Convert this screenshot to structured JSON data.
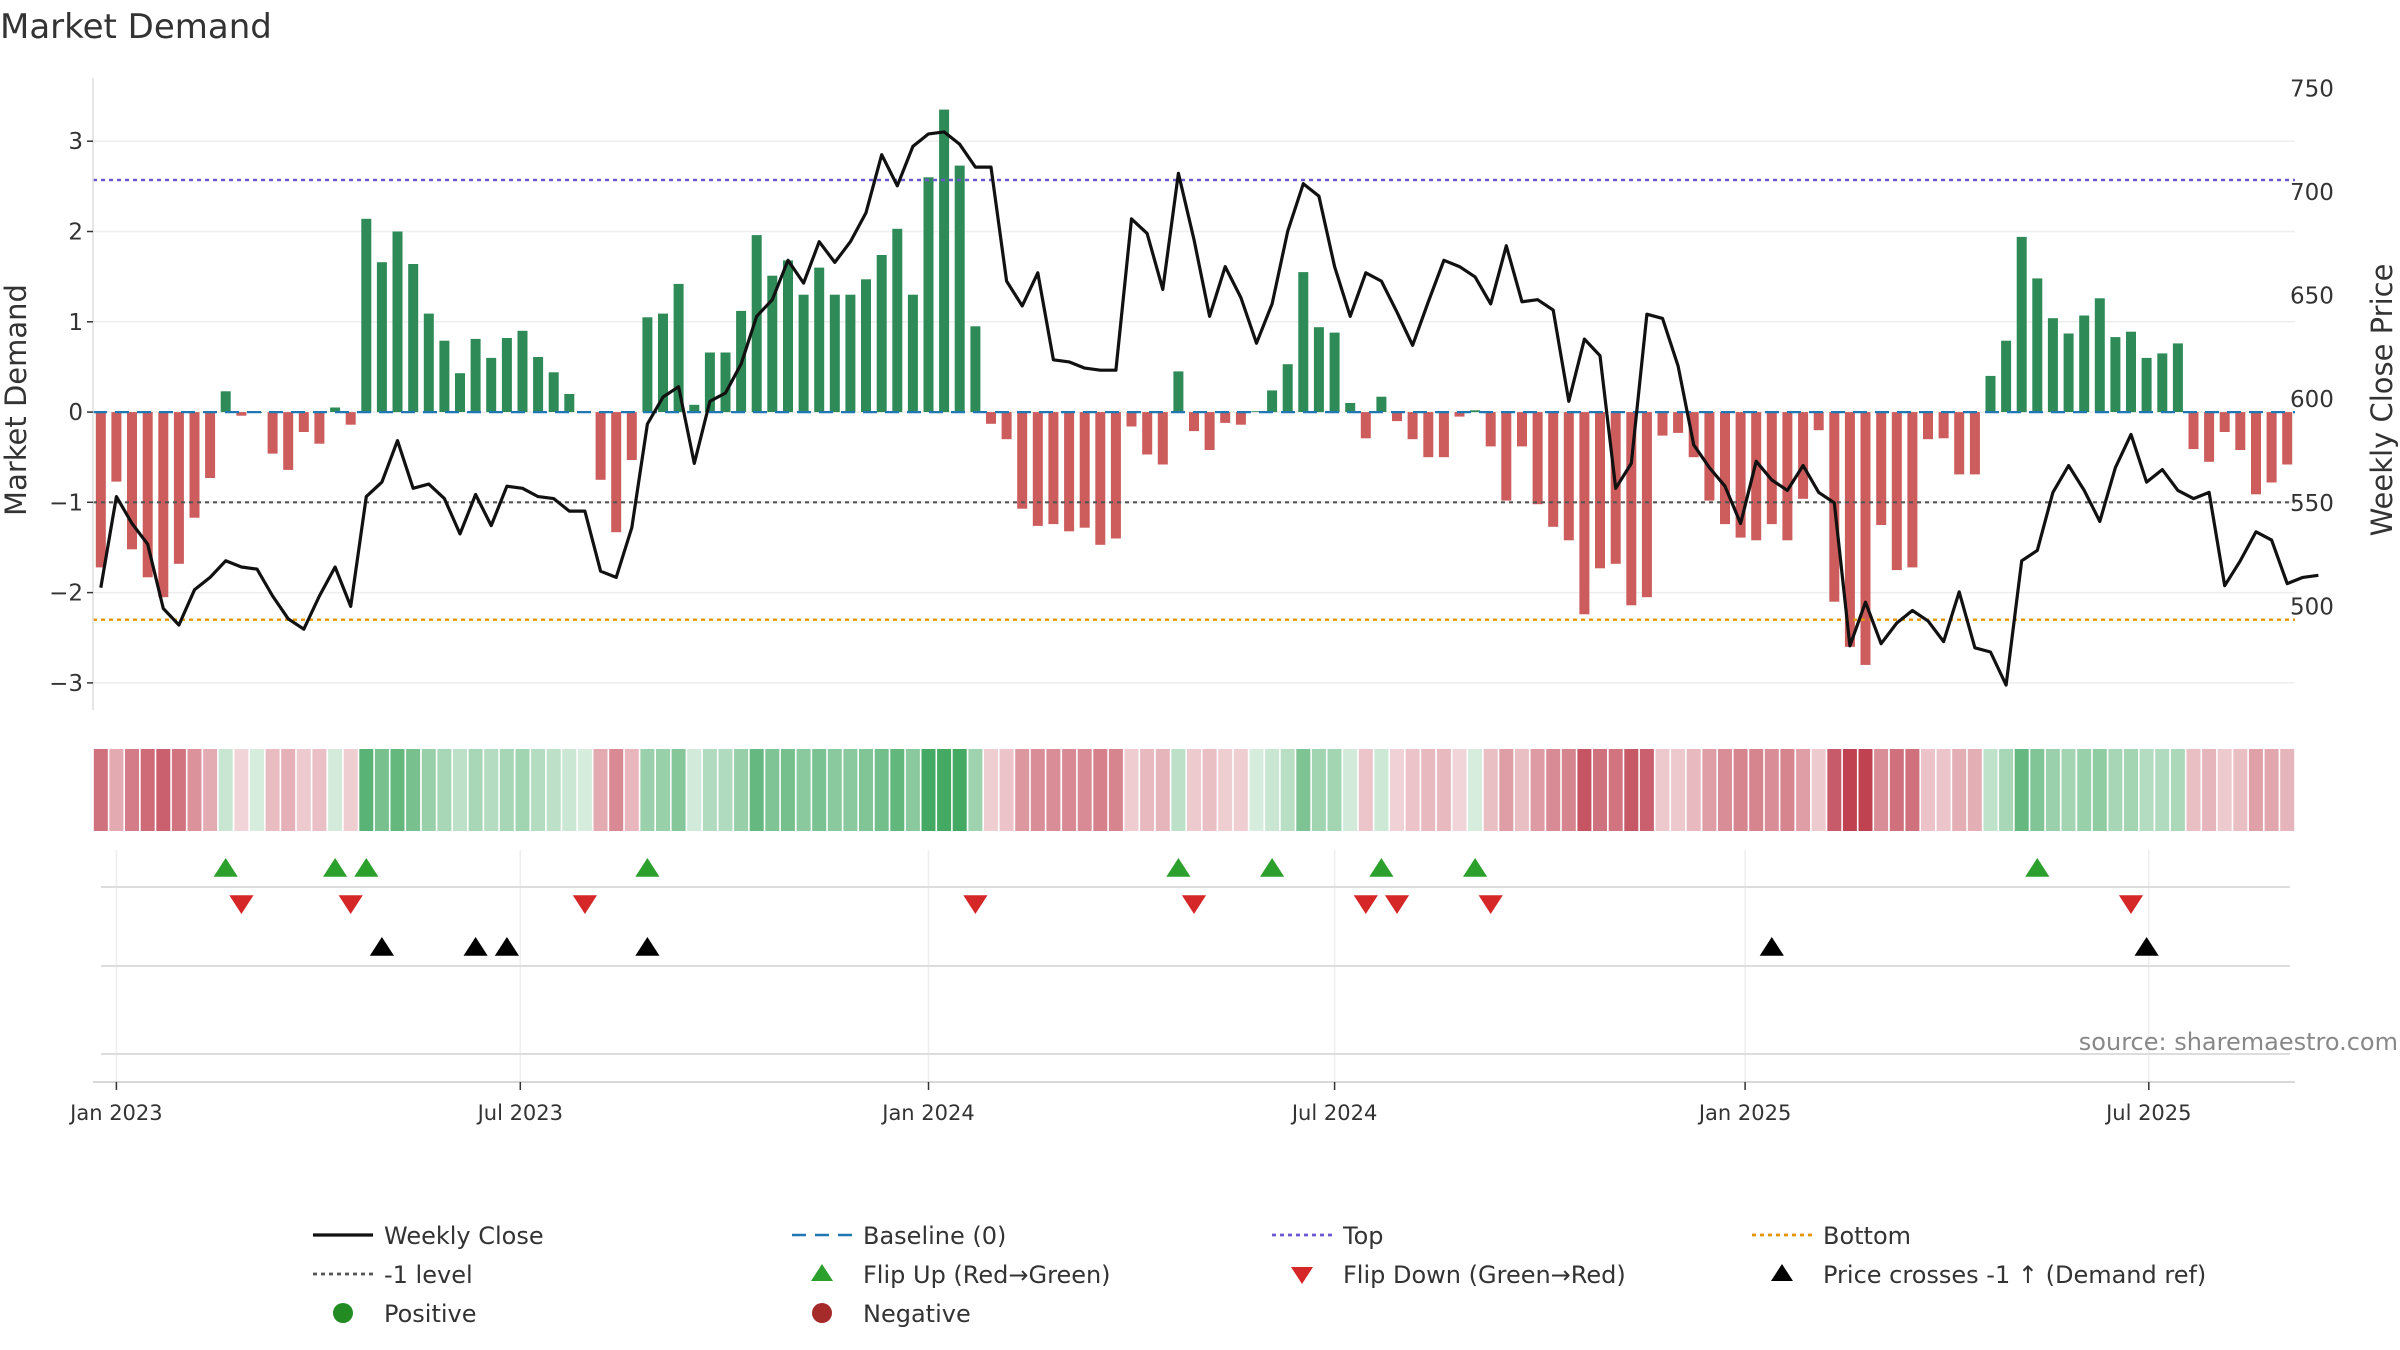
{
  "chart_data": {
    "type": "bar+line",
    "title": "Market Demand",
    "ylabel_left": "Market Demand",
    "ylabel_right": "Weekly Close Price",
    "ylim_left": [
      -3.3,
      3.7
    ],
    "ylim_right": [
      450,
      755
    ],
    "yticks_left": [
      -3,
      -2,
      -1,
      0,
      1,
      2,
      3
    ],
    "yticks_left_labels": [
      "−3",
      "−2",
      "−1",
      "0",
      "1",
      "2",
      "3"
    ],
    "yticks_right": [
      500,
      550,
      600,
      650,
      700,
      750
    ],
    "yticks_right_labels": [
      "500",
      "550",
      "600",
      "650",
      "700",
      "750"
    ],
    "x_start": "2022-12-26",
    "x_interval_days": 7,
    "x_ticks": [
      {
        "label": "Jan 2023",
        "offset_weeks": 1.0
      },
      {
        "label": "Jul 2023",
        "offset_weeks": 26.86
      },
      {
        "label": "Jan 2024",
        "offset_weeks": 53.0
      },
      {
        "label": "Jul 2024",
        "offset_weeks": 79.0
      },
      {
        "label": "Jan 2025",
        "offset_weeks": 105.29
      },
      {
        "label": "Jul 2025",
        "offset_weeks": 131.14
      }
    ],
    "levels": {
      "top": 2.57,
      "minus_one": -1.0,
      "bottom": -2.3,
      "baseline": 0
    },
    "demand": [
      -1.72,
      -0.77,
      -1.52,
      -1.83,
      -2.05,
      -1.68,
      -1.17,
      -0.73,
      0.23,
      -0.04,
      0,
      -0.46,
      -0.64,
      -0.22,
      -0.35,
      0.05,
      -0.14,
      2.14,
      1.66,
      2.0,
      1.64,
      1.09,
      0.79,
      0.43,
      0.81,
      0.6,
      0.82,
      0.9,
      0.61,
      0.44,
      0.2,
      0,
      -0.75,
      -1.33,
      -0.53,
      1.05,
      1.09,
      1.42,
      0.08,
      0.66,
      0.66,
      1.12,
      1.96,
      1.51,
      1.68,
      1.3,
      1.6,
      1.3,
      1.3,
      1.47,
      1.74,
      2.03,
      1.3,
      2.6,
      3.35,
      2.73,
      0.95,
      -0.13,
      -0.3,
      -1.07,
      -1.26,
      -1.24,
      -1.32,
      -1.28,
      -1.47,
      -1.4,
      -0.16,
      -0.47,
      -0.58,
      0.45,
      -0.21,
      -0.42,
      -0.12,
      -0.14,
      0.01,
      0.24,
      0.53,
      1.55,
      0.94,
      0.88,
      0.1,
      -0.29,
      0.17,
      -0.1,
      -0.3,
      -0.5,
      -0.5,
      -0.05,
      0.02,
      -0.38,
      -0.98,
      -0.38,
      -1.02,
      -1.27,
      -1.42,
      -2.24,
      -1.73,
      -1.68,
      -2.14,
      -2.05,
      -0.26,
      -0.23,
      -0.5,
      -0.98,
      -1.24,
      -1.39,
      -1.42,
      -1.24,
      -1.42,
      -0.96,
      -0.2,
      -2.1,
      -2.6,
      -2.8,
      -1.25,
      -1.75,
      -1.72,
      -0.3,
      -0.29,
      -0.69,
      -0.69,
      0.4,
      0.79,
      1.94,
      1.48,
      1.04,
      0.87,
      1.07,
      1.26,
      0.83,
      0.89,
      0.6,
      0.65,
      0.76,
      -0.41,
      -0.55,
      -0.22,
      -0.42,
      -0.91,
      -0.78,
      -0.58
    ],
    "price": [
      509,
      553,
      540,
      530,
      499,
      491,
      508,
      514,
      522,
      519,
      518,
      505,
      494,
      489,
      505,
      519,
      500,
      553,
      560,
      580,
      557,
      559,
      552,
      535,
      554,
      539,
      558,
      557,
      553,
      552,
      546,
      546,
      517,
      514,
      538,
      588,
      601,
      606,
      569,
      599,
      603,
      617,
      640,
      648,
      667,
      656,
      676,
      666,
      676,
      690,
      718,
      703,
      722,
      728,
      729,
      723,
      712,
      712,
      657,
      645,
      661,
      619,
      618,
      615,
      614,
      614,
      687,
      680,
      653,
      709,
      677,
      640,
      664,
      649,
      627,
      646,
      681,
      704,
      698,
      664,
      640,
      661,
      657,
      642,
      626,
      647,
      667,
      664,
      659,
      646,
      674,
      647,
      648,
      643,
      599,
      629,
      621,
      557,
      569,
      641,
      639,
      616,
      578,
      567,
      558,
      540,
      570,
      561,
      556,
      568,
      555,
      550,
      481,
      502,
      482,
      492,
      498,
      493,
      483,
      507,
      480,
      478,
      462,
      522,
      527,
      555,
      568,
      556,
      541,
      567,
      583,
      560,
      566,
      556,
      552,
      555,
      510,
      522,
      536,
      532,
      511,
      514,
      515
    ],
    "series": [
      {
        "name": "Weekly Close",
        "color": "#111111",
        "axis": "right"
      },
      {
        "name": "Market Demand",
        "axis": "left",
        "positive_color": "#2e8b57",
        "negative_color": "#cd5c5c"
      }
    ],
    "strip_colors": {
      "positive": "#1a9641",
      "negative": "#b2182b"
    },
    "flip_up": [
      8,
      15,
      17,
      35,
      69,
      75,
      82,
      88,
      124
    ],
    "flip_down": [
      9,
      16,
      31,
      56,
      70,
      81,
      83,
      89,
      130
    ],
    "price_cross_up": [
      18,
      24,
      26,
      35,
      107,
      131
    ],
    "legend": [
      {
        "label": "Weekly Close",
        "style": "line",
        "color": "#111111"
      },
      {
        "label": "Baseline (0)",
        "style": "dash",
        "color": "#1f77b4"
      },
      {
        "label": "Top",
        "style": "dot",
        "color": "#6a5acd"
      },
      {
        "label": "Bottom",
        "style": "dot",
        "color": "#e69500"
      },
      {
        "label": "-1 level",
        "style": "dot",
        "color": "#555555"
      },
      {
        "label": "Flip Up (Red→Green)",
        "style": "tri-up",
        "color": "#2ca02c"
      },
      {
        "label": "Flip Down (Green→Red)",
        "style": "tri-down",
        "color": "#d62728"
      },
      {
        "label": "Price crosses -1 ↑ (Demand ref)",
        "style": "tri-up",
        "color": "#000000"
      },
      {
        "label": "Positive",
        "style": "dot-marker",
        "color": "#228b22"
      },
      {
        "label": "Negative",
        "style": "dot-marker",
        "color": "#a52a2a"
      }
    ],
    "annotation": "source: sharemaestro.com"
  }
}
